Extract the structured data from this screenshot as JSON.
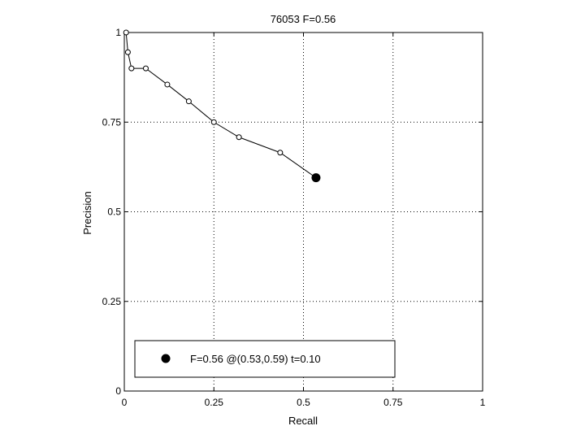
{
  "chart_data": {
    "type": "line",
    "title": "76053 F=0.56",
    "xlabel": "Recall",
    "ylabel": "Precision",
    "xlim": [
      0,
      1
    ],
    "ylim": [
      0,
      1
    ],
    "grid": true,
    "x_ticks": [
      {
        "value": 0,
        "label": "0"
      },
      {
        "value": 0.25,
        "label": "0.25"
      },
      {
        "value": 0.5,
        "label": "0.5"
      },
      {
        "value": 0.75,
        "label": "0.75"
      },
      {
        "value": 1,
        "label": "1"
      }
    ],
    "y_ticks": [
      {
        "value": 0,
        "label": "0"
      },
      {
        "value": 0.25,
        "label": "0.25"
      },
      {
        "value": 0.5,
        "label": "0.5"
      },
      {
        "value": 0.75,
        "label": "0.75"
      },
      {
        "value": 1,
        "label": "1"
      }
    ],
    "series": [
      {
        "marker": "open-circle",
        "color": "#000000",
        "points": [
          {
            "x": 0.005,
            "y": 1.0
          },
          {
            "x": 0.01,
            "y": 0.945
          },
          {
            "x": 0.02,
            "y": 0.9
          },
          {
            "x": 0.06,
            "y": 0.9
          },
          {
            "x": 0.12,
            "y": 0.855
          },
          {
            "x": 0.18,
            "y": 0.808
          },
          {
            "x": 0.25,
            "y": 0.75
          },
          {
            "x": 0.32,
            "y": 0.708
          },
          {
            "x": 0.435,
            "y": 0.665
          },
          {
            "x": 0.535,
            "y": 0.595
          }
        ]
      }
    ],
    "highlight": {
      "x": 0.535,
      "y": 0.595,
      "marker": "filled-circle",
      "color": "#000000"
    },
    "legend": {
      "position": "bottom",
      "label": "F=0.56 @(0.53,0.59) t=0.10"
    }
  }
}
